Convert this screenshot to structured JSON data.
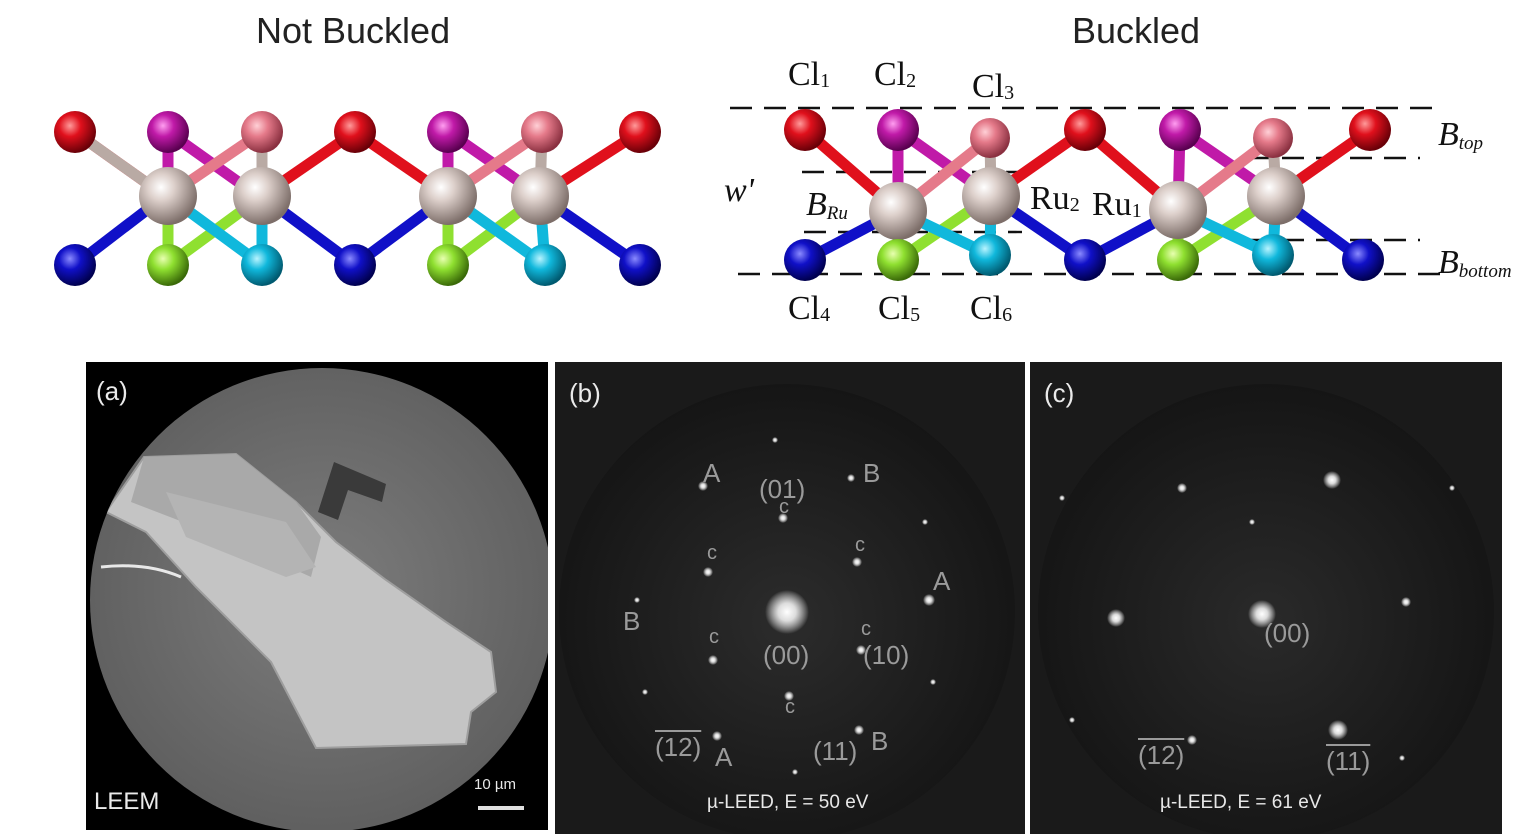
{
  "titles": {
    "left": "Not Buckled",
    "right": "Buckled"
  },
  "structure_labels": {
    "cl1": "Cl",
    "cl1_sub": "1",
    "cl2": "Cl",
    "cl2_sub": "2",
    "cl3": "Cl",
    "cl3_sub": "3",
    "cl4": "Cl",
    "cl4_sub": "4",
    "cl5": "Cl",
    "cl5_sub": "5",
    "cl6": "Cl",
    "cl6_sub": "6",
    "ru2": "Ru",
    "ru2_sub": "2",
    "ru1": "Ru",
    "ru1_sub": "1",
    "w_prime": "w'",
    "b_ru": "B",
    "b_ru_sub": "Ru",
    "b_top": "B",
    "b_top_sub": "top",
    "b_bottom": "B",
    "b_bottom_sub": "bottom"
  },
  "colors": {
    "ru": "#c9b8b2",
    "bond": "#b9aaa4",
    "cl1": "#e0101c",
    "cl2": "#c01aa8",
    "cl3": "#e57a8a",
    "cl4": "#1010c8",
    "cl5": "#8fe030",
    "cl6": "#10b8dc"
  },
  "panel_a": {
    "label": "(a)",
    "mode": "LEEM",
    "scalebar": "10 µm"
  },
  "panel_b": {
    "label": "(b)",
    "caption": "µ-LEED, E = 50 eV",
    "spots": {
      "a1": "A",
      "b1": "B",
      "i01": "(01)",
      "c1": "c",
      "c2": "c",
      "c3": "c",
      "a2": "A",
      "b2": "B",
      "c4": "c",
      "c5": "c",
      "i00": "(00)",
      "i10": "(10)",
      "c6": "c",
      "i12": "(12)",
      "a3": "A",
      "i11": "(11)",
      "b3": "B"
    }
  },
  "panel_c": {
    "label": "(c)",
    "caption": "µ-LEED, E = 61 eV",
    "spots": {
      "i00": "(00)",
      "i12": "(12)",
      "i11": "(11)"
    }
  }
}
